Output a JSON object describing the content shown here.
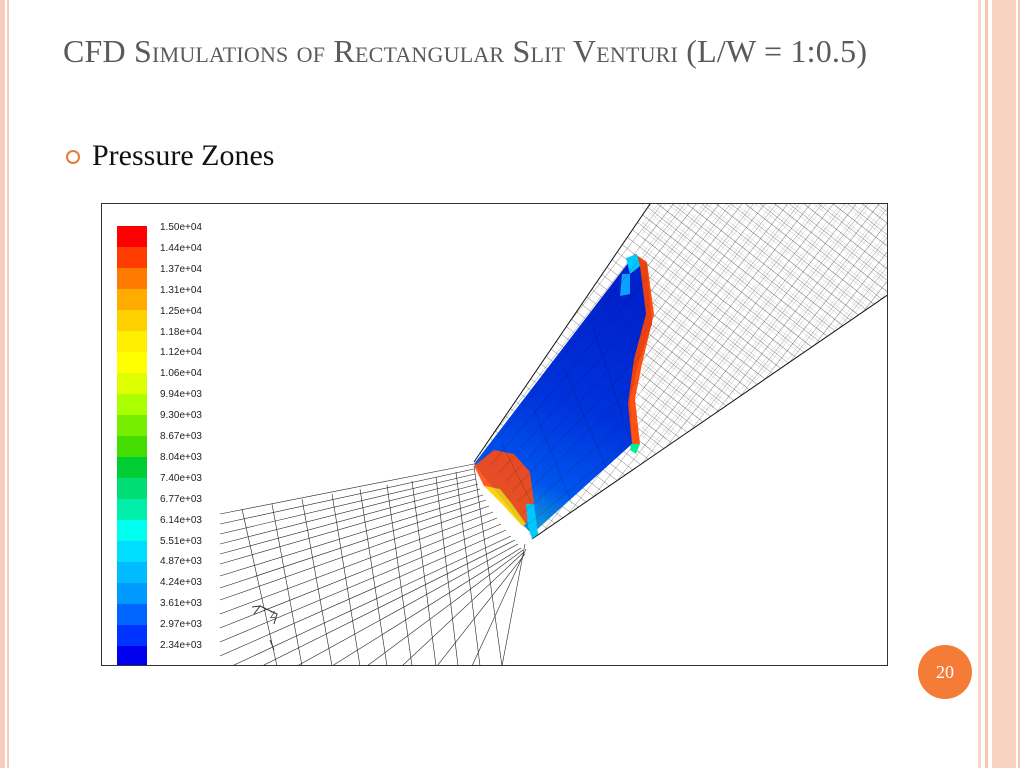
{
  "slide": {
    "title": "CFD Simulations of Rectangular Slit Venturi (L/W = 1:0.5)",
    "bullet": "Pressure Zones",
    "page_number": "20"
  },
  "legend": {
    "labels": [
      "1.50e+04",
      "1.44e+04",
      "1.37e+04",
      "1.31e+04",
      "1.25e+04",
      "1.18e+04",
      "1.12e+04",
      "1.06e+04",
      "9.94e+03",
      "9.30e+03",
      "8.67e+03",
      "8.04e+03",
      "7.40e+03",
      "6.77e+03",
      "6.14e+03",
      "5.51e+03",
      "4.87e+03",
      "4.24e+03",
      "3.61e+03",
      "2.97e+03",
      "2.34e+03"
    ],
    "colors": [
      "#ff0000",
      "#ff3d00",
      "#ff7a00",
      "#ffab00",
      "#ffd000",
      "#ffee00",
      "#ffff00",
      "#ddff00",
      "#aaff00",
      "#77ee00",
      "#44dd00",
      "#00cc33",
      "#00dd77",
      "#00eeaa",
      "#00ffee",
      "#00ddff",
      "#00bbff",
      "#0099ff",
      "#0066ff",
      "#0033ff",
      "#0000ee"
    ]
  },
  "axes_glyph": "Z"
}
